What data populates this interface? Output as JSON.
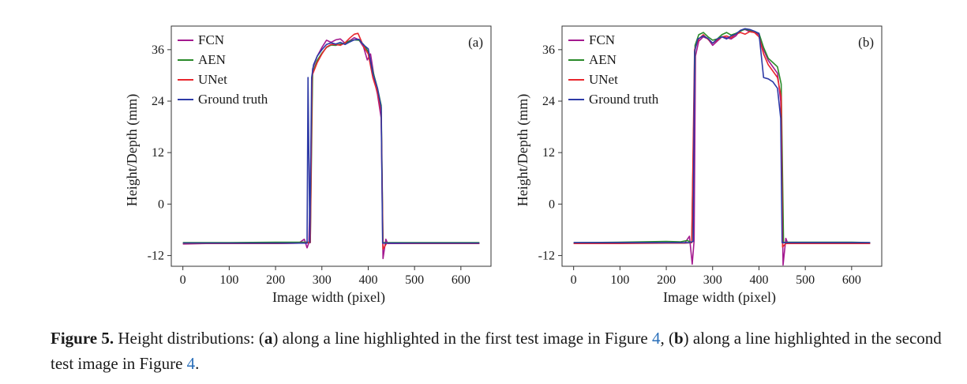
{
  "chart_data": [
    {
      "type": "line",
      "panel_label": "(a)",
      "xlabel": "Image width (pixel)",
      "ylabel": "Height/Depth (mm)",
      "xlim": [
        -25,
        665
      ],
      "ylim": [
        -14.5,
        41.5
      ],
      "xticks": [
        0,
        100,
        200,
        300,
        400,
        500,
        600
      ],
      "yticks": [
        -12,
        0,
        12,
        24,
        36
      ],
      "legend_position": "top-left",
      "series": [
        {
          "name": "FCN",
          "color": "#a4198f",
          "points": [
            [
              0,
              -9.3
            ],
            [
              100,
              -9.1
            ],
            [
              200,
              -9.2
            ],
            [
              250,
              -9.1
            ],
            [
              262,
              -8.2
            ],
            [
              268,
              -10.2
            ],
            [
              272,
              -9.0
            ],
            [
              276,
              10
            ],
            [
              280,
              31.5
            ],
            [
              290,
              34.5
            ],
            [
              300,
              36.5
            ],
            [
              310,
              38.2
            ],
            [
              320,
              37.7
            ],
            [
              330,
              38.3
            ],
            [
              340,
              38.5
            ],
            [
              350,
              37.5
            ],
            [
              360,
              38.1
            ],
            [
              370,
              38.8
            ],
            [
              380,
              38.3
            ],
            [
              390,
              36.6
            ],
            [
              398,
              33.6
            ],
            [
              405,
              35.0
            ],
            [
              415,
              28.0
            ],
            [
              420,
              25.6
            ],
            [
              428,
              20
            ],
            [
              432,
              -12.7
            ],
            [
              438,
              -8.2
            ],
            [
              442,
              -9.2
            ],
            [
              500,
              -9.2
            ],
            [
              600,
              -9.1
            ],
            [
              640,
              -9.2
            ]
          ]
        },
        {
          "name": "AEN",
          "color": "#2a8a2a",
          "points": [
            [
              0,
              -9.0
            ],
            [
              100,
              -9.0
            ],
            [
              200,
              -8.9
            ],
            [
              260,
              -8.9
            ],
            [
              270,
              -8.9
            ],
            [
              275,
              -8.9
            ],
            [
              280,
              30.5
            ],
            [
              290,
              33.5
            ],
            [
              300,
              35.2
            ],
            [
              310,
              36.5
            ],
            [
              320,
              37.1
            ],
            [
              330,
              37.0
            ],
            [
              340,
              37.3
            ],
            [
              350,
              37.6
            ],
            [
              360,
              38.0
            ],
            [
              370,
              38.3
            ],
            [
              380,
              38.2
            ],
            [
              390,
              37.2
            ],
            [
              400,
              35.5
            ],
            [
              410,
              31.0
            ],
            [
              420,
              27.0
            ],
            [
              428,
              23.0
            ],
            [
              432,
              -9.0
            ],
            [
              440,
              -9.0
            ],
            [
              500,
              -9.0
            ],
            [
              600,
              -9.0
            ],
            [
              640,
              -9.0
            ]
          ]
        },
        {
          "name": "UNet",
          "color": "#e8262d",
          "points": [
            [
              0,
              -9.2
            ],
            [
              100,
              -9.2
            ],
            [
              200,
              -9.2
            ],
            [
              260,
              -9.1
            ],
            [
              270,
              -9.0
            ],
            [
              275,
              -9.0
            ],
            [
              279,
              30.0
            ],
            [
              290,
              33.0
            ],
            [
              300,
              35.0
            ],
            [
              310,
              36.6
            ],
            [
              320,
              37.2
            ],
            [
              330,
              37.2
            ],
            [
              340,
              37.0
            ],
            [
              350,
              37.6
            ],
            [
              360,
              38.7
            ],
            [
              370,
              39.6
            ],
            [
              378,
              39.8
            ],
            [
              385,
              38.0
            ],
            [
              390,
              36.7
            ],
            [
              400,
              35.0
            ],
            [
              410,
              29.5
            ],
            [
              420,
              26.0
            ],
            [
              428,
              21.5
            ],
            [
              432,
              -10.5
            ],
            [
              440,
              -9.1
            ],
            [
              500,
              -9.2
            ],
            [
              600,
              -9.2
            ],
            [
              640,
              -9.2
            ]
          ]
        },
        {
          "name": "Ground truth",
          "color": "#2d3aa6",
          "points": [
            [
              0,
              -9.1
            ],
            [
              100,
              -9.1
            ],
            [
              200,
              -9.1
            ],
            [
              268,
              -9.1
            ],
            [
              270,
              29.5
            ],
            [
              274,
              -9.0
            ],
            [
              278,
              29.5
            ],
            [
              282,
              32.5
            ],
            [
              290,
              34.5
            ],
            [
              300,
              36.0
            ],
            [
              310,
              37.2
            ],
            [
              320,
              37.6
            ],
            [
              330,
              37.3
            ],
            [
              340,
              37.7
            ],
            [
              350,
              37.2
            ],
            [
              360,
              37.8
            ],
            [
              370,
              38.3
            ],
            [
              380,
              38.4
            ],
            [
              390,
              37.1
            ],
            [
              400,
              36.2
            ],
            [
              410,
              30.5
            ],
            [
              420,
              27.0
            ],
            [
              428,
              22.5
            ],
            [
              431,
              -9.1
            ],
            [
              440,
              -9.1
            ],
            [
              500,
              -9.1
            ],
            [
              600,
              -9.1
            ],
            [
              640,
              -9.1
            ]
          ]
        }
      ]
    },
    {
      "type": "line",
      "panel_label": "(b)",
      "xlabel": "Image width (pixel)",
      "ylabel": "Height/Depth (mm)",
      "xlim": [
        -25,
        665
      ],
      "ylim": [
        -14.5,
        41.5
      ],
      "xticks": [
        0,
        100,
        200,
        300,
        400,
        500,
        600
      ],
      "yticks": [
        -12,
        0,
        12,
        24,
        36
      ],
      "legend_position": "top-left",
      "series": [
        {
          "name": "FCN",
          "color": "#a4198f",
          "points": [
            [
              0,
              -9.2
            ],
            [
              100,
              -9.1
            ],
            [
              200,
              -9.1
            ],
            [
              240,
              -9.1
            ],
            [
              250,
              -7.5
            ],
            [
              256,
              -14.0
            ],
            [
              260,
              -8.5
            ],
            [
              263,
              34.5
            ],
            [
              270,
              38.0
            ],
            [
              280,
              39.0
            ],
            [
              290,
              38.5
            ],
            [
              300,
              37.0
            ],
            [
              310,
              38.0
            ],
            [
              320,
              39.0
            ],
            [
              330,
              38.8
            ],
            [
              340,
              38.5
            ],
            [
              350,
              39.2
            ],
            [
              360,
              40.5
            ],
            [
              370,
              40.7
            ],
            [
              380,
              40.2
            ],
            [
              390,
              40.0
            ],
            [
              400,
              39.5
            ],
            [
              410,
              36.0
            ],
            [
              420,
              33.5
            ],
            [
              430,
              32.0
            ],
            [
              440,
              30.5
            ],
            [
              447,
              24.0
            ],
            [
              452,
              -14.2
            ],
            [
              458,
              -8.0
            ],
            [
              462,
              -9.1
            ],
            [
              500,
              -9.1
            ],
            [
              600,
              -9.1
            ],
            [
              640,
              -9.2
            ]
          ]
        },
        {
          "name": "AEN",
          "color": "#2a8a2a",
          "points": [
            [
              0,
              -9.0
            ],
            [
              100,
              -8.9
            ],
            [
              200,
              -8.7
            ],
            [
              230,
              -8.8
            ],
            [
              245,
              -8.5
            ],
            [
              255,
              -9.0
            ],
            [
              262,
              37.0
            ],
            [
              270,
              39.5
            ],
            [
              280,
              40.0
            ],
            [
              290,
              39.0
            ],
            [
              300,
              38.2
            ],
            [
              310,
              38.5
            ],
            [
              320,
              39.5
            ],
            [
              330,
              40.0
            ],
            [
              340,
              39.4
            ],
            [
              350,
              39.8
            ],
            [
              360,
              40.3
            ],
            [
              370,
              40.8
            ],
            [
              380,
              40.5
            ],
            [
              390,
              40.2
            ],
            [
              400,
              39.8
            ],
            [
              410,
              36.5
            ],
            [
              420,
              34.0
            ],
            [
              430,
              33.0
            ],
            [
              440,
              32.0
            ],
            [
              448,
              28.0
            ],
            [
              453,
              -9.0
            ],
            [
              460,
              -8.9
            ],
            [
              500,
              -8.9
            ],
            [
              600,
              -8.9
            ],
            [
              640,
              -9.0
            ]
          ]
        },
        {
          "name": "UNet",
          "color": "#e8262d",
          "points": [
            [
              0,
              -9.2
            ],
            [
              100,
              -9.2
            ],
            [
              200,
              -9.1
            ],
            [
              240,
              -9.1
            ],
            [
              255,
              -9.0
            ],
            [
              261,
              36.0
            ],
            [
              270,
              38.5
            ],
            [
              280,
              39.5
            ],
            [
              290,
              38.4
            ],
            [
              300,
              37.5
            ],
            [
              310,
              38.3
            ],
            [
              320,
              39.0
            ],
            [
              330,
              39.2
            ],
            [
              340,
              38.8
            ],
            [
              350,
              39.6
            ],
            [
              360,
              40.0
            ],
            [
              370,
              39.6
            ],
            [
              380,
              40.2
            ],
            [
              390,
              40.0
            ],
            [
              400,
              39.0
            ],
            [
              410,
              35.0
            ],
            [
              420,
              32.5
            ],
            [
              430,
              31.0
            ],
            [
              440,
              29.5
            ],
            [
              448,
              25.0
            ],
            [
              451,
              -10.0
            ],
            [
              458,
              -9.2
            ],
            [
              500,
              -9.2
            ],
            [
              600,
              -9.2
            ],
            [
              640,
              -9.2
            ]
          ]
        },
        {
          "name": "Ground truth",
          "color": "#2d3aa6",
          "points": [
            [
              0,
              -9.0
            ],
            [
              100,
              -9.0
            ],
            [
              200,
              -9.0
            ],
            [
              250,
              -9.0
            ],
            [
              258,
              -8.7
            ],
            [
              261,
              35.5
            ],
            [
              268,
              38.5
            ],
            [
              280,
              39.2
            ],
            [
              290,
              38.6
            ],
            [
              300,
              37.5
            ],
            [
              310,
              38.5
            ],
            [
              320,
              39.0
            ],
            [
              330,
              38.5
            ],
            [
              340,
              39.2
            ],
            [
              350,
              39.6
            ],
            [
              360,
              40.5
            ],
            [
              370,
              40.9
            ],
            [
              380,
              40.7
            ],
            [
              390,
              40.3
            ],
            [
              400,
              39.8
            ],
            [
              410,
              29.5
            ],
            [
              420,
              29.2
            ],
            [
              430,
              28.5
            ],
            [
              440,
              27.0
            ],
            [
              447,
              20.0
            ],
            [
              450,
              -9.0
            ],
            [
              460,
              -9.0
            ],
            [
              500,
              -9.0
            ],
            [
              600,
              -9.0
            ],
            [
              640,
              -9.0
            ]
          ]
        }
      ]
    }
  ],
  "caption": {
    "figure_label": "Figure 5.",
    "part1": " Height distributions: (",
    "a_letter": "a",
    "part2": ") along a line highlighted in the first test image in Figure ",
    "ref1": "4",
    "part3": ", (",
    "b_letter": "b",
    "part4": ") along a line highlighted in the second test image in Figure ",
    "ref2": "4",
    "part5": "."
  }
}
